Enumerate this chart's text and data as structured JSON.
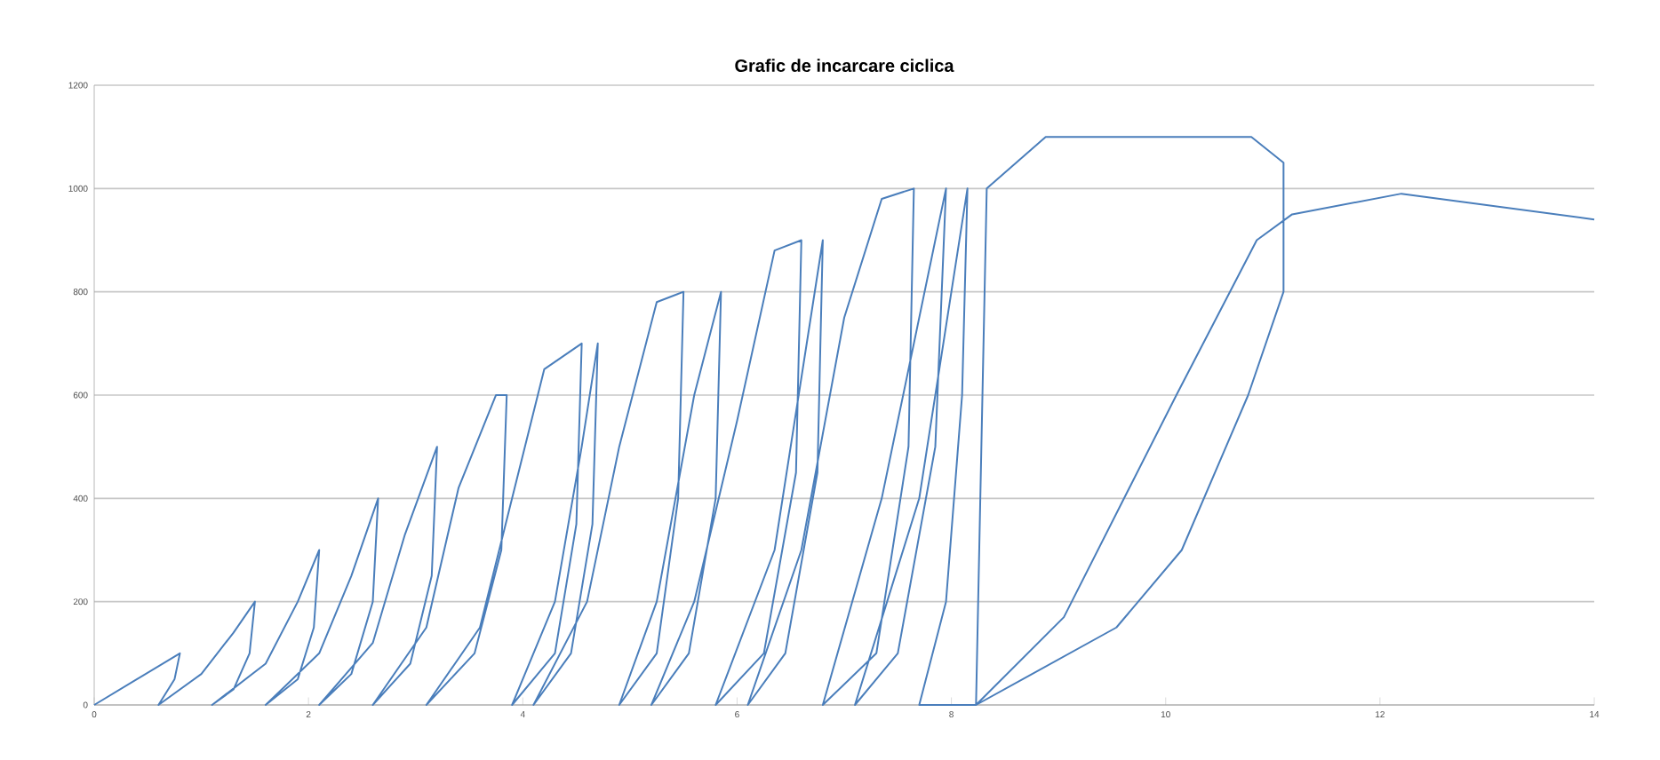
{
  "chart_data": {
    "type": "line",
    "title": "Grafic de incarcare ciclica",
    "xlim": [
      0,
      14
    ],
    "ylim": [
      0,
      1200
    ],
    "xticks": [
      0,
      2,
      4,
      6,
      8,
      10,
      12,
      14
    ],
    "yticks": [
      0,
      200,
      400,
      600,
      800,
      1000,
      1200
    ],
    "grid": "y",
    "series": [
      {
        "color": "#4a7ebb",
        "x": [
          0,
          0.4,
          0.8,
          0.75,
          0.6,
          1.0,
          1.3,
          1.5,
          1.45,
          1.3,
          1.1,
          1.6,
          1.9,
          2.1,
          2.05,
          1.9,
          1.6,
          2.1,
          2.4,
          2.65,
          2.6,
          2.4,
          2.1,
          2.6,
          2.9,
          3.2,
          3.15,
          2.95,
          2.6,
          3.1,
          3.4,
          3.75,
          3.85,
          3.8,
          3.55,
          3.1,
          3.6,
          3.9,
          4.2,
          4.55,
          4.5,
          4.3,
          3.9,
          4.3,
          4.55,
          4.7,
          4.65,
          4.45,
          4.1,
          4.6,
          4.9,
          5.25,
          5.5,
          5.45,
          5.25,
          4.9,
          5.25,
          5.6,
          5.85,
          5.8,
          5.55,
          5.2,
          5.6,
          6.0,
          6.35,
          6.6,
          6.55,
          6.25,
          5.8,
          6.35,
          6.8,
          6.75,
          6.45,
          6.1,
          6.6,
          7.0,
          7.35,
          7.65,
          7.6,
          7.3,
          6.8,
          7.35,
          7.95,
          7.85,
          7.5,
          7.1,
          7.7,
          8.15,
          8.1,
          7.95,
          7.7,
          8.23,
          8.33,
          8.88,
          10.8,
          11.1,
          11.1,
          10.77,
          10.15,
          9.54,
          8.23,
          9.05,
          10.1,
          10.85,
          11.18,
          12.2,
          14
        ],
        "values": [
          0,
          50,
          100,
          50,
          0,
          60,
          140,
          200,
          100,
          30,
          0,
          80,
          200,
          300,
          150,
          50,
          0,
          100,
          250,
          400,
          200,
          60,
          0,
          120,
          330,
          500,
          250,
          80,
          0,
          150,
          420,
          600,
          600,
          300,
          100,
          0,
          150,
          400,
          650,
          700,
          350,
          100,
          0,
          200,
          500,
          700,
          350,
          100,
          0,
          200,
          500,
          780,
          800,
          400,
          100,
          0,
          200,
          600,
          800,
          400,
          100,
          0,
          200,
          550,
          880,
          900,
          450,
          100,
          0,
          300,
          900,
          450,
          100,
          0,
          300,
          750,
          980,
          1000,
          500,
          100,
          0,
          400,
          1000,
          500,
          100,
          0,
          400,
          1000,
          600,
          200,
          0,
          0,
          1000,
          1100,
          1100,
          1050,
          800,
          600,
          300,
          150,
          0,
          170,
          600,
          900,
          950,
          990,
          940
        ]
      }
    ]
  }
}
